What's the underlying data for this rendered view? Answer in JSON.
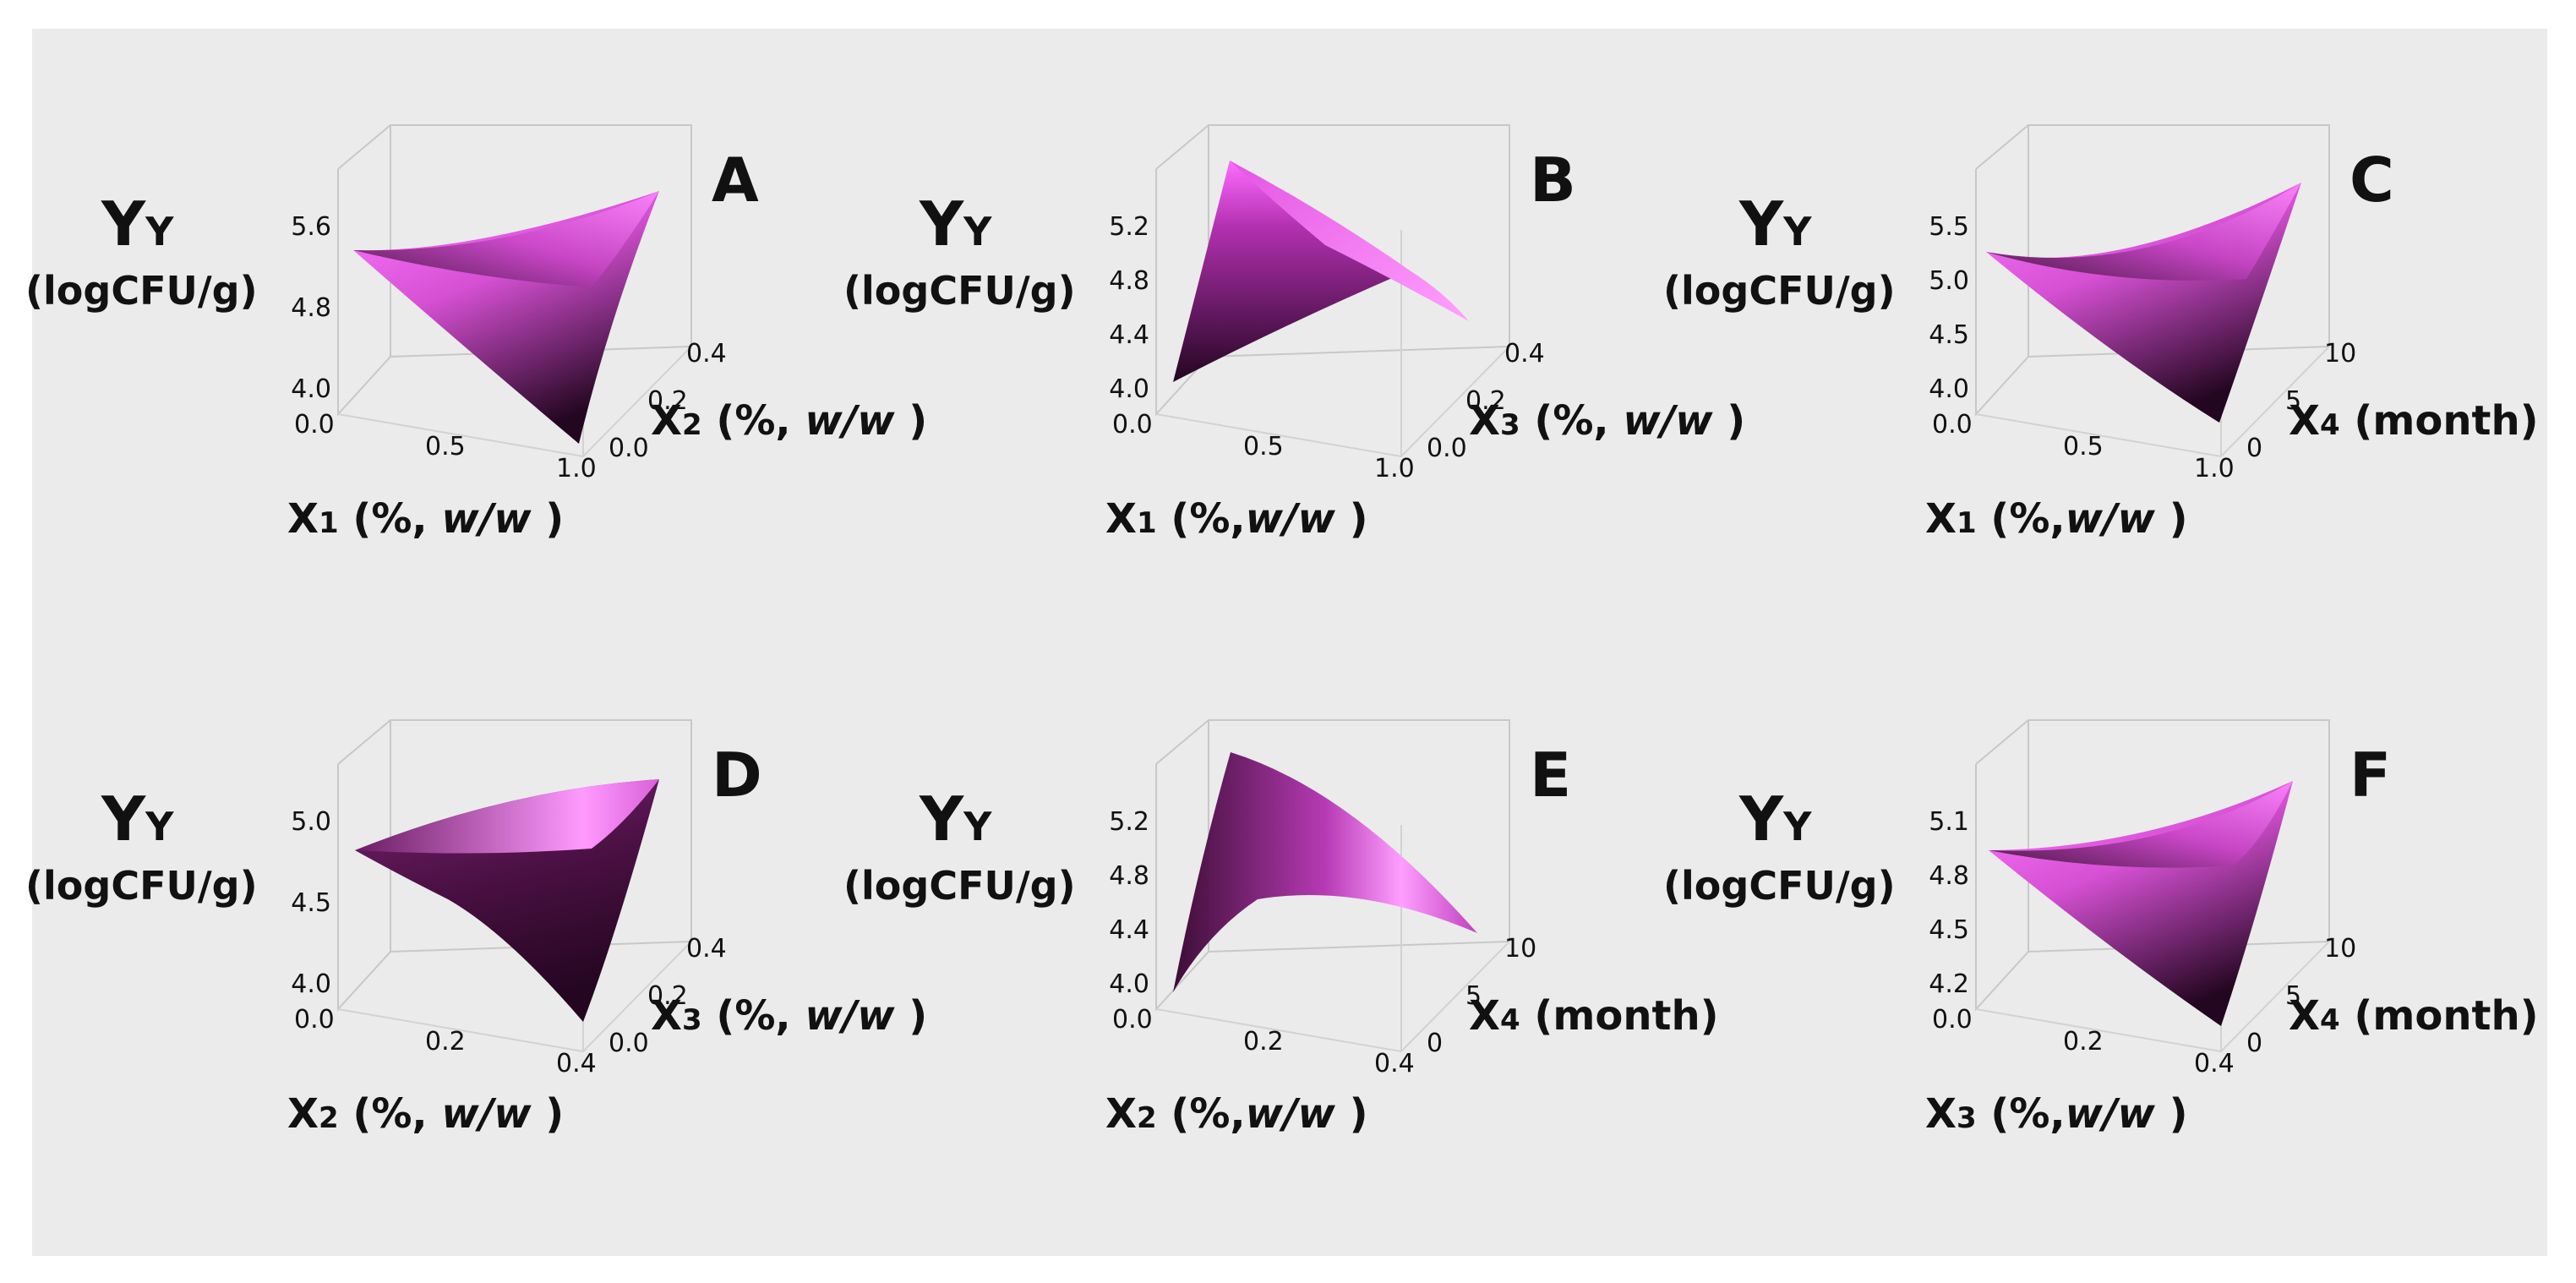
{
  "figure": {
    "background": "#ebebeb",
    "surface_colors": {
      "light": "#ff6fff",
      "mid": "#c23cc0",
      "dark": "#2c0a25"
    }
  },
  "chart_data": [
    {
      "type": "surface3d",
      "panel": "A",
      "ylabel_main": "Y",
      "ylabel_sub": "Y",
      "ylabel_units": "(logCFU/g)",
      "xlabel_main": "X",
      "xlabel_sub": "1",
      "xlabel_rest": " (%, ",
      "xlabel_ital": "w/w",
      "xlabel_end": " )",
      "zlabel_main": "X",
      "zlabel_sub": "2",
      "zlabel_rest": " (%, ",
      "zlabel_ital": "w/w",
      "zlabel_end": " )",
      "y_ticks": [
        "5.6",
        "4.8",
        "4.0"
      ],
      "x_ticks": [
        "0.0",
        "0.5",
        "1.0"
      ],
      "z_ticks": [
        "0.0",
        "0.2",
        "0.4"
      ],
      "x_range": [
        0.0,
        1.0
      ],
      "z_range": [
        0.0,
        0.4
      ]
    },
    {
      "type": "surface3d",
      "panel": "B",
      "ylabel_main": "Y",
      "ylabel_sub": "Y",
      "ylabel_units": "(logCFU/g)",
      "xlabel_main": "X",
      "xlabel_sub": "1",
      "xlabel_rest": " (%,",
      "xlabel_ital": "w/w",
      "xlabel_end": " )",
      "zlabel_main": "X",
      "zlabel_sub": "3",
      "zlabel_rest": " (%, ",
      "zlabel_ital": "w/w",
      "zlabel_end": " )",
      "y_ticks": [
        "5.2",
        "4.8",
        "4.4",
        "4.0"
      ],
      "x_ticks": [
        "0.0",
        "0.5",
        "1.0"
      ],
      "z_ticks": [
        "0.0",
        "0.2",
        "0.4"
      ],
      "x_range": [
        0.0,
        1.0
      ],
      "z_range": [
        0.0,
        0.4
      ]
    },
    {
      "type": "surface3d",
      "panel": "C",
      "ylabel_main": "Y",
      "ylabel_sub": "Y",
      "ylabel_units": "(logCFU/g)",
      "xlabel_main": "X",
      "xlabel_sub": "1",
      "xlabel_rest": " (%,",
      "xlabel_ital": "w/w",
      "xlabel_end": " )",
      "zlabel_main": "X",
      "zlabel_sub": "4",
      "zlabel_rest": " (month)",
      "zlabel_ital": "",
      "zlabel_end": "",
      "y_ticks": [
        "5.5",
        "5.0",
        "4.5",
        "4.0"
      ],
      "x_ticks": [
        "0.0",
        "0.5",
        "1.0"
      ],
      "z_ticks": [
        "0",
        "5",
        "10"
      ],
      "x_range": [
        0.0,
        1.0
      ],
      "z_range": [
        0,
        10
      ]
    },
    {
      "type": "surface3d",
      "panel": "D",
      "ylabel_main": "Y",
      "ylabel_sub": "Y",
      "ylabel_units": "(logCFU/g)",
      "xlabel_main": "X",
      "xlabel_sub": "2",
      "xlabel_rest": " (%, ",
      "xlabel_ital": "w/w",
      "xlabel_end": " )",
      "zlabel_main": "X",
      "zlabel_sub": "3",
      "zlabel_rest": " (%, ",
      "zlabel_ital": "w/w",
      "zlabel_end": " )",
      "y_ticks": [
        "5.0",
        "4.5",
        "4.0"
      ],
      "x_ticks": [
        "0.0",
        "0.2",
        "0.4"
      ],
      "z_ticks": [
        "0.0",
        "0.2",
        "0.4"
      ],
      "x_range": [
        0.0,
        0.4
      ],
      "z_range": [
        0.0,
        0.4
      ]
    },
    {
      "type": "surface3d",
      "panel": "E",
      "ylabel_main": "Y",
      "ylabel_sub": "Y",
      "ylabel_units": "(logCFU/g)",
      "xlabel_main": "X",
      "xlabel_sub": "2",
      "xlabel_rest": " (%,",
      "xlabel_ital": "w/w",
      "xlabel_end": " )",
      "zlabel_main": "X",
      "zlabel_sub": "4",
      "zlabel_rest": " (month)",
      "zlabel_ital": "",
      "zlabel_end": "",
      "y_ticks": [
        "5.2",
        "4.8",
        "4.4",
        "4.0"
      ],
      "x_ticks": [
        "0.0",
        "0.2",
        "0.4"
      ],
      "z_ticks": [
        "0",
        "5",
        "10"
      ],
      "x_range": [
        0.0,
        0.4
      ],
      "z_range": [
        0,
        10
      ]
    },
    {
      "type": "surface3d",
      "panel": "F",
      "ylabel_main": "Y",
      "ylabel_sub": "Y",
      "ylabel_units": "(logCFU/g)",
      "xlabel_main": "X",
      "xlabel_sub": "3",
      "xlabel_rest": " (%,",
      "xlabel_ital": "w/w",
      "xlabel_end": " )",
      "zlabel_main": "X",
      "zlabel_sub": "4",
      "zlabel_rest": " (month)",
      "zlabel_ital": "",
      "zlabel_end": "",
      "y_ticks": [
        "5.1",
        "4.8",
        "4.5",
        "4.2"
      ],
      "x_ticks": [
        "0.0",
        "0.2",
        "0.4"
      ],
      "z_ticks": [
        "0",
        "5",
        "10"
      ],
      "x_range": [
        0.0,
        0.4
      ],
      "z_range": [
        0,
        10
      ]
    }
  ]
}
